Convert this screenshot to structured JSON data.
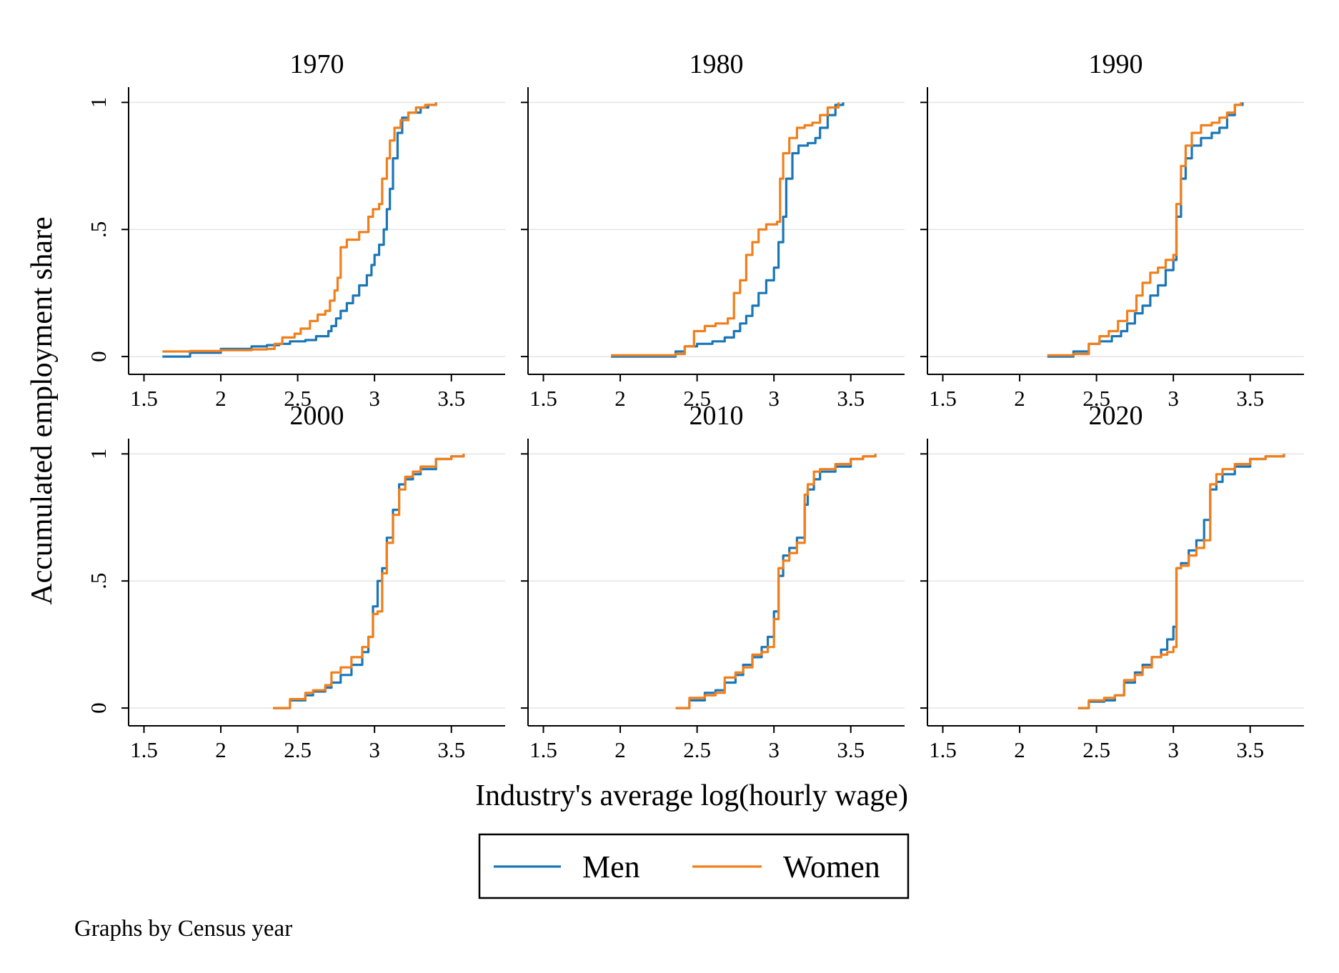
{
  "figure": {
    "xlabel": "Industry's average log(hourly wage)",
    "ylabel": "Accumulated employment share",
    "note": "Graphs by Census year",
    "legend_position": "bottom-center"
  },
  "colors": {
    "Men": "#1a76b7",
    "Women": "#f07f1b",
    "grid": "#e4e4e4"
  },
  "chart_data": [
    {
      "type": "line",
      "title": "1970",
      "xlim": [
        1.4,
        3.85
      ],
      "ylim": [
        -0.07,
        1.06
      ],
      "xticks": [
        1.5,
        2,
        2.5,
        3,
        3.5
      ],
      "xtick_labels": [
        "1.5",
        "2",
        "2.5",
        "3",
        "3.5"
      ],
      "yticks": [
        0,
        0.5,
        1
      ],
      "ytick_labels": [
        "0",
        ".5",
        "1"
      ],
      "grid": true,
      "series": [
        {
          "name": "Men",
          "x": [
            1.62,
            1.8,
            2.0,
            2.2,
            2.3,
            2.38,
            2.45,
            2.55,
            2.62,
            2.7,
            2.72,
            2.75,
            2.78,
            2.82,
            2.86,
            2.9,
            2.95,
            2.98,
            3.0,
            3.03,
            3.06,
            3.08,
            3.1,
            3.12,
            3.15,
            3.18,
            3.22,
            3.3,
            3.35,
            3.4
          ],
          "y": [
            0,
            0.015,
            0.03,
            0.04,
            0.045,
            0.05,
            0.06,
            0.065,
            0.08,
            0.1,
            0.12,
            0.15,
            0.18,
            0.21,
            0.24,
            0.28,
            0.32,
            0.36,
            0.4,
            0.44,
            0.5,
            0.58,
            0.66,
            0.78,
            0.88,
            0.94,
            0.96,
            0.98,
            0.99,
            1.0
          ]
        },
        {
          "name": "Women",
          "x": [
            1.62,
            1.8,
            2.0,
            2.2,
            2.3,
            2.35,
            2.4,
            2.48,
            2.52,
            2.58,
            2.63,
            2.68,
            2.71,
            2.74,
            2.76,
            2.78,
            2.82,
            2.9,
            2.96,
            2.99,
            3.03,
            3.05,
            3.08,
            3.1,
            3.13,
            3.17,
            3.22,
            3.27,
            3.33,
            3.4
          ],
          "y": [
            0.02,
            0.022,
            0.025,
            0.028,
            0.03,
            0.05,
            0.075,
            0.09,
            0.11,
            0.14,
            0.165,
            0.18,
            0.22,
            0.26,
            0.31,
            0.43,
            0.46,
            0.49,
            0.55,
            0.58,
            0.6,
            0.7,
            0.78,
            0.85,
            0.9,
            0.93,
            0.96,
            0.98,
            0.99,
            1.0
          ]
        }
      ]
    },
    {
      "type": "line",
      "title": "1980",
      "xlim": [
        1.4,
        3.85
      ],
      "ylim": [
        -0.07,
        1.06
      ],
      "xticks": [
        1.5,
        2,
        2.5,
        3,
        3.5
      ],
      "xtick_labels": [
        "1.5",
        "2",
        "2.5",
        "3",
        "3.5"
      ],
      "yticks": [
        0,
        0.5,
        1
      ],
      "ytick_labels": [
        "0",
        ".5",
        "1"
      ],
      "grid": true,
      "series": [
        {
          "name": "Men",
          "x": [
            1.94,
            2.1,
            2.3,
            2.36,
            2.42,
            2.5,
            2.6,
            2.68,
            2.74,
            2.78,
            2.82,
            2.86,
            2.9,
            2.95,
            3.0,
            3.03,
            3.06,
            3.08,
            3.12,
            3.16,
            3.22,
            3.27,
            3.3,
            3.35,
            3.4,
            3.45
          ],
          "y": [
            0,
            0,
            0,
            0.02,
            0.04,
            0.05,
            0.06,
            0.075,
            0.1,
            0.13,
            0.16,
            0.2,
            0.25,
            0.3,
            0.35,
            0.45,
            0.55,
            0.7,
            0.8,
            0.83,
            0.84,
            0.86,
            0.9,
            0.95,
            0.99,
            1.0
          ]
        },
        {
          "name": "Women",
          "x": [
            1.94,
            2.1,
            2.3,
            2.36,
            2.42,
            2.48,
            2.55,
            2.62,
            2.7,
            2.74,
            2.78,
            2.82,
            2.86,
            2.9,
            2.95,
            3.02,
            3.04,
            3.06,
            3.1,
            3.15,
            3.2,
            3.25,
            3.3,
            3.35,
            3.42
          ],
          "y": [
            0.005,
            0.005,
            0.005,
            0.01,
            0.04,
            0.1,
            0.12,
            0.13,
            0.15,
            0.25,
            0.3,
            0.4,
            0.45,
            0.5,
            0.52,
            0.53,
            0.7,
            0.8,
            0.86,
            0.9,
            0.91,
            0.92,
            0.95,
            0.98,
            1.0
          ]
        }
      ]
    },
    {
      "type": "line",
      "title": "1990",
      "xlim": [
        1.4,
        3.85
      ],
      "ylim": [
        -0.07,
        1.06
      ],
      "xticks": [
        1.5,
        2,
        2.5,
        3,
        3.5
      ],
      "xtick_labels": [
        "1.5",
        "2",
        "2.5",
        "3",
        "3.5"
      ],
      "yticks": [
        0,
        0.5,
        1
      ],
      "ytick_labels": [
        "0",
        ".5",
        "1"
      ],
      "grid": true,
      "series": [
        {
          "name": "Men",
          "x": [
            2.18,
            2.25,
            2.35,
            2.45,
            2.52,
            2.6,
            2.66,
            2.7,
            2.75,
            2.8,
            2.85,
            2.9,
            2.95,
            3.0,
            3.02,
            3.05,
            3.08,
            3.12,
            3.18,
            3.25,
            3.3,
            3.35,
            3.4,
            3.45
          ],
          "y": [
            0,
            0,
            0.02,
            0.05,
            0.06,
            0.08,
            0.1,
            0.13,
            0.17,
            0.2,
            0.24,
            0.28,
            0.34,
            0.38,
            0.55,
            0.7,
            0.78,
            0.83,
            0.86,
            0.88,
            0.9,
            0.95,
            0.99,
            1.0
          ]
        },
        {
          "name": "Women",
          "x": [
            2.18,
            2.25,
            2.35,
            2.45,
            2.52,
            2.58,
            2.64,
            2.7,
            2.76,
            2.8,
            2.85,
            2.9,
            2.95,
            3.0,
            3.02,
            3.05,
            3.08,
            3.12,
            3.18,
            3.25,
            3.3,
            3.35,
            3.4,
            3.44
          ],
          "y": [
            0.005,
            0.005,
            0.01,
            0.05,
            0.08,
            0.1,
            0.14,
            0.18,
            0.24,
            0.29,
            0.33,
            0.35,
            0.38,
            0.4,
            0.6,
            0.75,
            0.83,
            0.88,
            0.91,
            0.92,
            0.94,
            0.96,
            0.99,
            1.0
          ]
        }
      ]
    },
    {
      "type": "line",
      "title": "2000",
      "xlim": [
        1.4,
        3.85
      ],
      "ylim": [
        -0.07,
        1.06
      ],
      "xticks": [
        1.5,
        2,
        2.5,
        3,
        3.5
      ],
      "xtick_labels": [
        "1.5",
        "2",
        "2.5",
        "3",
        "3.5"
      ],
      "yticks": [
        0,
        0.5,
        1
      ],
      "ytick_labels": [
        "0",
        ".5",
        "1"
      ],
      "grid": true,
      "series": [
        {
          "name": "Men",
          "x": [
            2.34,
            2.45,
            2.55,
            2.6,
            2.68,
            2.72,
            2.78,
            2.85,
            2.92,
            2.96,
            2.99,
            3.02,
            3.05,
            3.08,
            3.12,
            3.16,
            3.2,
            3.25,
            3.3,
            3.4,
            3.5,
            3.58
          ],
          "y": [
            0,
            0.03,
            0.05,
            0.065,
            0.08,
            0.1,
            0.13,
            0.17,
            0.22,
            0.28,
            0.4,
            0.5,
            0.55,
            0.67,
            0.78,
            0.88,
            0.9,
            0.92,
            0.94,
            0.98,
            0.99,
            1.0
          ]
        },
        {
          "name": "Women",
          "x": [
            2.34,
            2.45,
            2.55,
            2.6,
            2.68,
            2.72,
            2.78,
            2.85,
            2.92,
            2.96,
            2.99,
            3.02,
            3.05,
            3.08,
            3.12,
            3.16,
            3.2,
            3.25,
            3.3,
            3.4,
            3.5,
            3.58
          ],
          "y": [
            0,
            0.035,
            0.06,
            0.07,
            0.09,
            0.14,
            0.16,
            0.2,
            0.24,
            0.28,
            0.37,
            0.38,
            0.53,
            0.65,
            0.76,
            0.86,
            0.91,
            0.93,
            0.95,
            0.98,
            0.99,
            1.0
          ]
        }
      ]
    },
    {
      "type": "line",
      "title": "2010",
      "xlim": [
        1.4,
        3.85
      ],
      "ylim": [
        -0.07,
        1.06
      ],
      "xticks": [
        1.5,
        2,
        2.5,
        3,
        3.5
      ],
      "xtick_labels": [
        "1.5",
        "2",
        "2.5",
        "3",
        "3.5"
      ],
      "yticks": [
        0,
        0.5,
        1
      ],
      "ytick_labels": [
        "0",
        ".5",
        "1"
      ],
      "grid": true,
      "series": [
        {
          "name": "Men",
          "x": [
            2.36,
            2.45,
            2.55,
            2.62,
            2.68,
            2.75,
            2.8,
            2.86,
            2.92,
            2.96,
            3.0,
            3.03,
            3.06,
            3.1,
            3.15,
            3.2,
            3.22,
            3.26,
            3.3,
            3.4,
            3.5,
            3.58,
            3.66
          ],
          "y": [
            0,
            0.03,
            0.06,
            0.07,
            0.1,
            0.13,
            0.17,
            0.2,
            0.24,
            0.28,
            0.38,
            0.52,
            0.6,
            0.63,
            0.67,
            0.8,
            0.86,
            0.9,
            0.93,
            0.95,
            0.98,
            0.99,
            1.0
          ]
        },
        {
          "name": "Women",
          "x": [
            2.36,
            2.45,
            2.55,
            2.62,
            2.68,
            2.75,
            2.8,
            2.86,
            2.92,
            2.96,
            3.0,
            3.03,
            3.06,
            3.1,
            3.15,
            3.2,
            3.22,
            3.26,
            3.3,
            3.4,
            3.5,
            3.58,
            3.66
          ],
          "y": [
            0,
            0.04,
            0.05,
            0.06,
            0.12,
            0.14,
            0.16,
            0.21,
            0.22,
            0.24,
            0.35,
            0.55,
            0.58,
            0.61,
            0.65,
            0.84,
            0.88,
            0.93,
            0.94,
            0.96,
            0.98,
            0.99,
            1.0
          ]
        }
      ]
    },
    {
      "type": "line",
      "title": "2020",
      "xlim": [
        1.4,
        3.85
      ],
      "ylim": [
        -0.07,
        1.06
      ],
      "xticks": [
        1.5,
        2,
        2.5,
        3,
        3.5
      ],
      "xtick_labels": [
        "1.5",
        "2",
        "2.5",
        "3",
        "3.5"
      ],
      "yticks": [
        0,
        0.5,
        1
      ],
      "ytick_labels": [
        "0",
        ".5",
        "1"
      ],
      "grid": true,
      "series": [
        {
          "name": "Men",
          "x": [
            2.38,
            2.45,
            2.55,
            2.62,
            2.68,
            2.75,
            2.8,
            2.86,
            2.92,
            2.96,
            3.0,
            3.02,
            3.05,
            3.1,
            3.15,
            3.2,
            3.24,
            3.28,
            3.32,
            3.4,
            3.5,
            3.6,
            3.72
          ],
          "y": [
            0,
            0.025,
            0.03,
            0.05,
            0.1,
            0.14,
            0.17,
            0.2,
            0.23,
            0.27,
            0.32,
            0.55,
            0.57,
            0.62,
            0.66,
            0.74,
            0.86,
            0.89,
            0.92,
            0.95,
            0.98,
            0.99,
            1.0
          ]
        },
        {
          "name": "Women",
          "x": [
            2.38,
            2.45,
            2.55,
            2.62,
            2.68,
            2.75,
            2.8,
            2.86,
            2.92,
            2.96,
            3.0,
            3.02,
            3.05,
            3.1,
            3.15,
            3.2,
            3.24,
            3.28,
            3.32,
            3.4,
            3.5,
            3.6,
            3.72
          ],
          "y": [
            0,
            0.03,
            0.04,
            0.05,
            0.11,
            0.13,
            0.16,
            0.2,
            0.21,
            0.22,
            0.24,
            0.55,
            0.56,
            0.6,
            0.63,
            0.66,
            0.88,
            0.92,
            0.94,
            0.96,
            0.98,
            0.99,
            1.0
          ]
        }
      ]
    }
  ]
}
